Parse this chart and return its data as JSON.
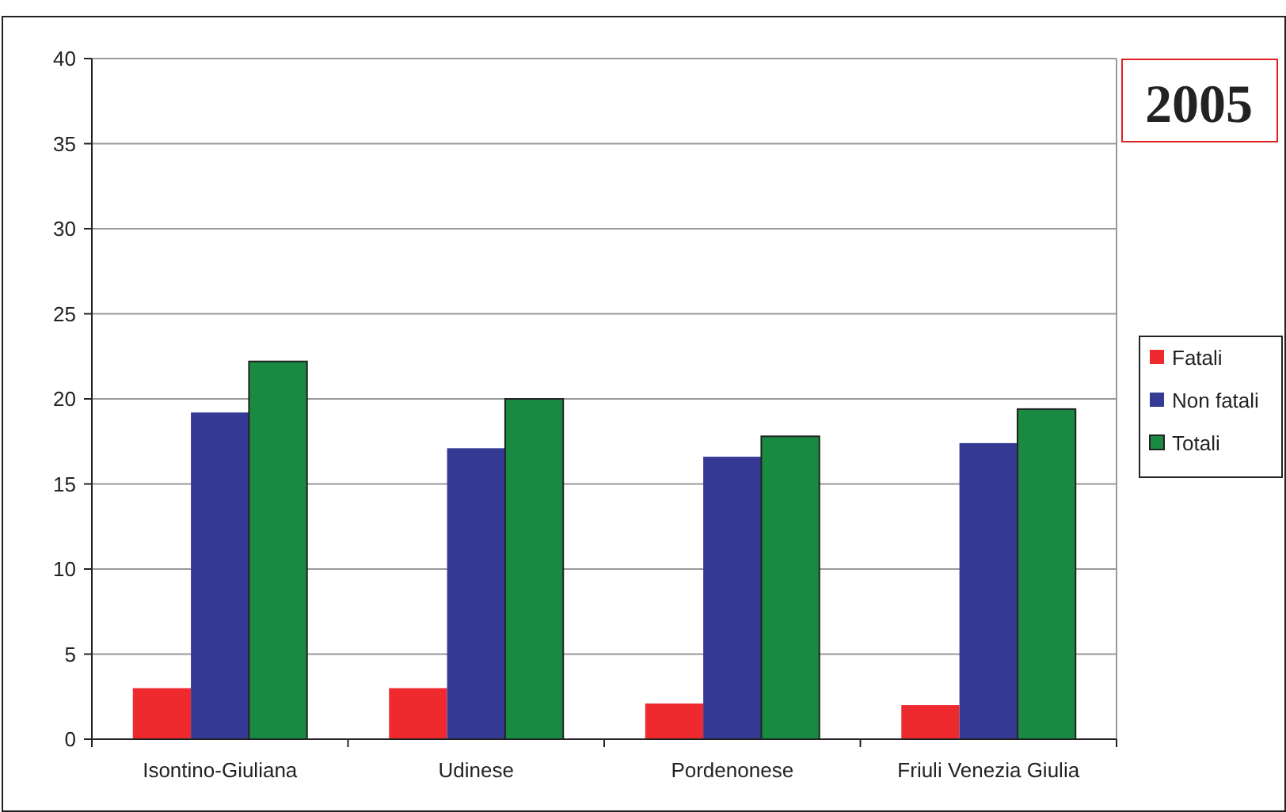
{
  "chart_data": {
    "type": "bar",
    "title": "2005",
    "categories": [
      "Isontino-Giuliana",
      "Udinese",
      "Pordenonese",
      "Friuli Venezia Giulia"
    ],
    "series": [
      {
        "name": "Fatali",
        "color": "#ee2a2f",
        "values": [
          3.0,
          3.0,
          2.1,
          2.0
        ]
      },
      {
        "name": "Non fatali",
        "color": "#353b95",
        "values": [
          19.2,
          17.1,
          16.6,
          17.4
        ]
      },
      {
        "name": "Totali",
        "color": "#1a8a43",
        "values": [
          22.2,
          20.0,
          17.8,
          19.4
        ]
      }
    ],
    "ylim": [
      0,
      40
    ],
    "yticks": [
      0,
      5,
      10,
      15,
      20,
      25,
      30,
      35,
      40
    ],
    "grid": "y",
    "legend": "right"
  }
}
